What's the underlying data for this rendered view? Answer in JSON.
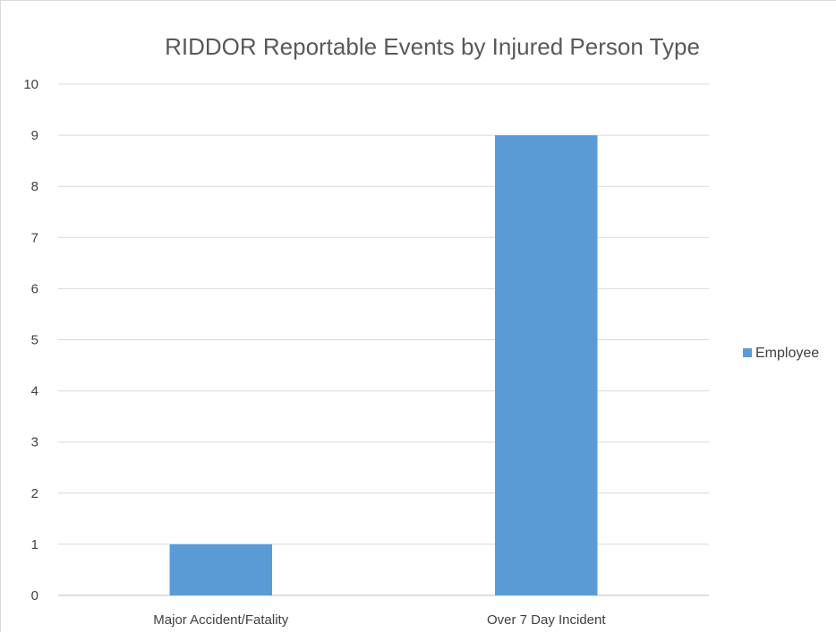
{
  "chart_data": {
    "type": "bar",
    "title": "RIDDOR Reportable Events by Injured Person Type",
    "xlabel": "",
    "ylabel": "",
    "categories": [
      "Major Accident/Fatality",
      "Over 7 Day Incident"
    ],
    "series": [
      {
        "name": "Employee",
        "values": [
          1,
          9
        ],
        "color": "#5b9bd5"
      }
    ],
    "ylim": [
      0,
      10
    ],
    "yticks": [
      "0",
      "1",
      "2",
      "3",
      "4",
      "5",
      "6",
      "7",
      "8",
      "9",
      "10"
    ],
    "grid": true,
    "legend": "right",
    "colors": {
      "gridline": "#d9d9d9",
      "axis": "#bfbfbf",
      "title": "#595959",
      "text": "#404040"
    }
  }
}
